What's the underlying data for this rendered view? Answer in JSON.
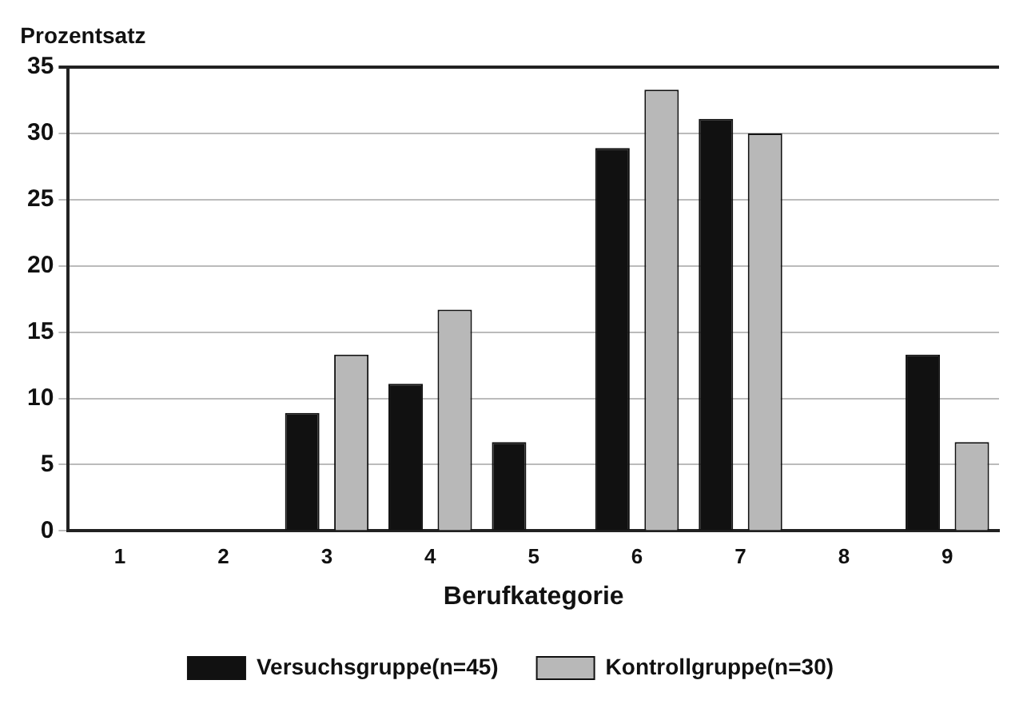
{
  "chart_data": {
    "type": "bar",
    "ylabel": "Prozentsatz",
    "xlabel": "Berufkategorie",
    "categories": [
      "1",
      "2",
      "3",
      "4",
      "5",
      "6",
      "7",
      "8",
      "9"
    ],
    "series": [
      {
        "name": "Versuchsgruppe(n=45)",
        "color": "#111111",
        "values": [
          0,
          0,
          8.9,
          11.1,
          6.7,
          28.9,
          31.1,
          0,
          13.3
        ]
      },
      {
        "name": "Kontrollgruppe(n=30)",
        "color": "#b8b8b8",
        "values": [
          0,
          0,
          13.3,
          16.7,
          0,
          33.3,
          30,
          0,
          6.7
        ]
      }
    ],
    "ylim": [
      0,
      35
    ],
    "yticks": [
      0,
      5,
      10,
      15,
      20,
      25,
      30,
      35
    ],
    "grid": "y",
    "legend": "bottom"
  }
}
